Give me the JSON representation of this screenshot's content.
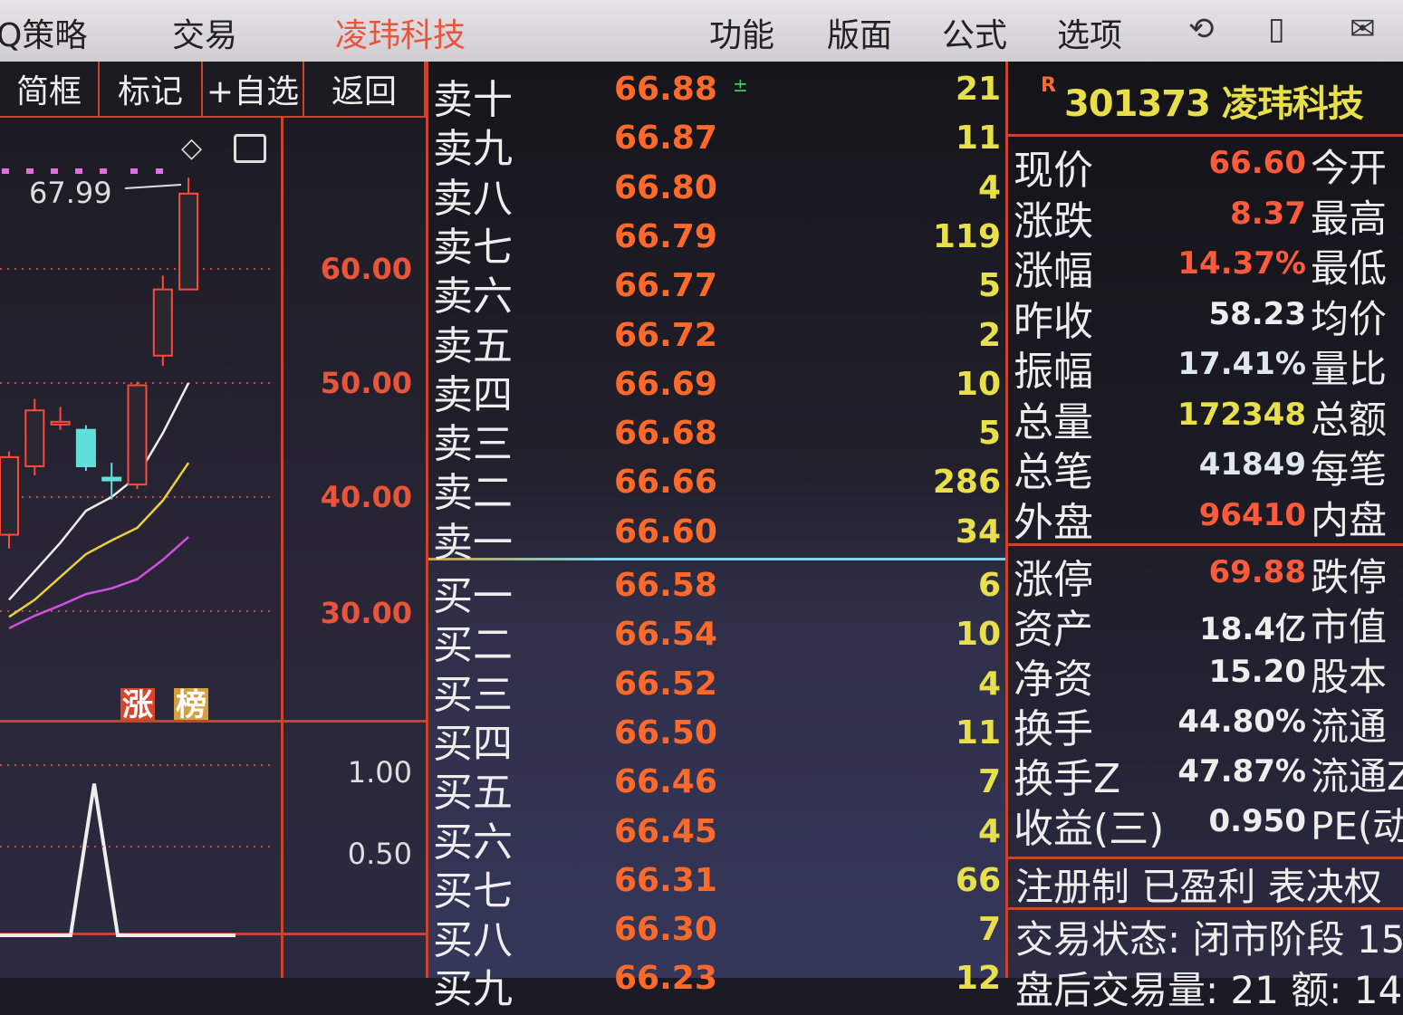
{
  "topbar": {
    "items": [
      "Q策略",
      "交易",
      "凌玮科技",
      "功能",
      "版面",
      "公式",
      "选项"
    ],
    "active_color": "#e9553a",
    "icons": [
      "refresh-icon",
      "phone-icon",
      "mail-icon"
    ]
  },
  "left": {
    "toolbar": [
      "简框",
      "标记",
      "+自选",
      "返回"
    ],
    "high_label": "67.99",
    "price_axis": [
      "60.00",
      "50.00",
      "40.00",
      "30.00"
    ],
    "badges": [
      "涨",
      "榜"
    ],
    "volume_axis": [
      "1.00",
      "0.50"
    ]
  },
  "chart_data": {
    "type": "candlestick",
    "ylim": [
      28,
      70
    ],
    "candles": [
      {
        "o": 36.7,
        "c": 43.5,
        "h": 44.0,
        "l": 35.5,
        "color": "red"
      },
      {
        "o": 42.7,
        "c": 47.6,
        "h": 48.6,
        "l": 41.9,
        "color": "red"
      },
      {
        "o": 46.4,
        "c": 46.6,
        "h": 47.9,
        "l": 45.9,
        "color": "red"
      },
      {
        "o": 45.9,
        "c": 42.7,
        "h": 46.3,
        "l": 42.3,
        "color": "cyan"
      },
      {
        "o": 41.5,
        "c": 41.7,
        "h": 43.0,
        "l": 39.8,
        "color": "cyan"
      },
      {
        "o": 41.1,
        "c": 49.8,
        "h": 50.1,
        "l": 40.7,
        "color": "red"
      },
      {
        "o": 52.4,
        "c": 58.2,
        "h": 59.4,
        "l": 51.5,
        "color": "red"
      },
      {
        "o": 58.2,
        "c": 66.6,
        "h": 67.99,
        "l": 58.2,
        "color": "red"
      }
    ],
    "ma_white": [
      31.0,
      33.5,
      36.0,
      38.8,
      40.0,
      41.8,
      45.6,
      50.0
    ],
    "ma_yellow": [
      29.5,
      31.0,
      33.0,
      35.0,
      36.2,
      37.3,
      39.7,
      43.0
    ],
    "ma_magenta": [
      28.5,
      29.6,
      30.5,
      31.5,
      32.0,
      32.8,
      34.5,
      36.5
    ],
    "volume": {
      "x": [
        0,
        1,
        2,
        3,
        4,
        5,
        6,
        7,
        8,
        9,
        10
      ],
      "values": [
        0,
        0,
        0,
        0,
        0.93,
        0,
        0,
        0,
        0,
        0,
        0
      ],
      "ylim": [
        0,
        1.2
      ]
    }
  },
  "book": {
    "asks": [
      {
        "name": "卖十",
        "price": "66.88",
        "vol": "21"
      },
      {
        "name": "卖九",
        "price": "66.87",
        "vol": "11"
      },
      {
        "name": "卖八",
        "price": "66.80",
        "vol": "4"
      },
      {
        "name": "卖七",
        "price": "66.79",
        "vol": "119"
      },
      {
        "name": "卖六",
        "price": "66.77",
        "vol": "5"
      },
      {
        "name": "卖五",
        "price": "66.72",
        "vol": "2"
      },
      {
        "name": "卖四",
        "price": "66.69",
        "vol": "10"
      },
      {
        "name": "卖三",
        "price": "66.68",
        "vol": "5"
      },
      {
        "name": "卖二",
        "price": "66.66",
        "vol": "286"
      },
      {
        "name": "卖一",
        "price": "66.60",
        "vol": "34"
      }
    ],
    "bids": [
      {
        "name": "买一",
        "price": "66.58",
        "vol": "6"
      },
      {
        "name": "买二",
        "price": "66.54",
        "vol": "10"
      },
      {
        "name": "买三",
        "price": "66.52",
        "vol": "4"
      },
      {
        "name": "买四",
        "price": "66.50",
        "vol": "11"
      },
      {
        "name": "买五",
        "price": "66.46",
        "vol": "7"
      },
      {
        "name": "买六",
        "price": "66.45",
        "vol": "4"
      },
      {
        "name": "买七",
        "price": "66.31",
        "vol": "66"
      },
      {
        "name": "买八",
        "price": "66.30",
        "vol": "7"
      },
      {
        "name": "买九",
        "price": "66.23",
        "vol": "12"
      }
    ],
    "ask_top_arrow": "±"
  },
  "quote": {
    "badge": "R",
    "code": "301373",
    "name": "凌玮科技",
    "rows1": [
      {
        "k": "现价",
        "v": "66.60",
        "k2": "今开",
        "c": "#ff5a3a"
      },
      {
        "k": "涨跌",
        "v": "8.37",
        "k2": "最高",
        "c": "#ff5a3a"
      },
      {
        "k": "涨幅",
        "v": "14.37%",
        "k2": "最低",
        "c": "#ff5a3a"
      },
      {
        "k": "昨收",
        "v": "58.23",
        "k2": "均价",
        "c": "#eeeeee"
      },
      {
        "k": "振幅",
        "v": "17.41%",
        "k2": "量比",
        "c": "#dfe8ee"
      },
      {
        "k": "总量",
        "v": "172348",
        "k2": "总额",
        "c": "#e8e04a"
      },
      {
        "k": "总笔",
        "v": "41849",
        "k2": "每笔",
        "c": "#dfe8ee"
      },
      {
        "k": "外盘",
        "v": "96410",
        "k2": "内盘",
        "c": "#ff5a3a"
      }
    ],
    "rows2": [
      {
        "k": "涨停",
        "v": "69.88",
        "k2": "跌停",
        "c": "#ff5a3a"
      },
      {
        "k": "资产",
        "v": "18.4亿",
        "k2": "市值",
        "c": "#eeeeee"
      },
      {
        "k": "净资",
        "v": "15.20",
        "k2": "股本",
        "c": "#eeeeee"
      },
      {
        "k": "换手",
        "v": "44.80%",
        "k2": "流通",
        "c": "#eeeeee"
      },
      {
        "k": "换手Z",
        "v": "47.87%",
        "k2": "流通Z",
        "c": "#eeeeee"
      },
      {
        "k": "收益(三)",
        "v": "0.950",
        "k2": "PE(动)",
        "c": "#eeeeee"
      }
    ],
    "tags": "注册制 已盈利 表决权",
    "status": "交易状态: 闭市阶段 15",
    "last_line": "盘后交易量: 21  额: 14"
  }
}
